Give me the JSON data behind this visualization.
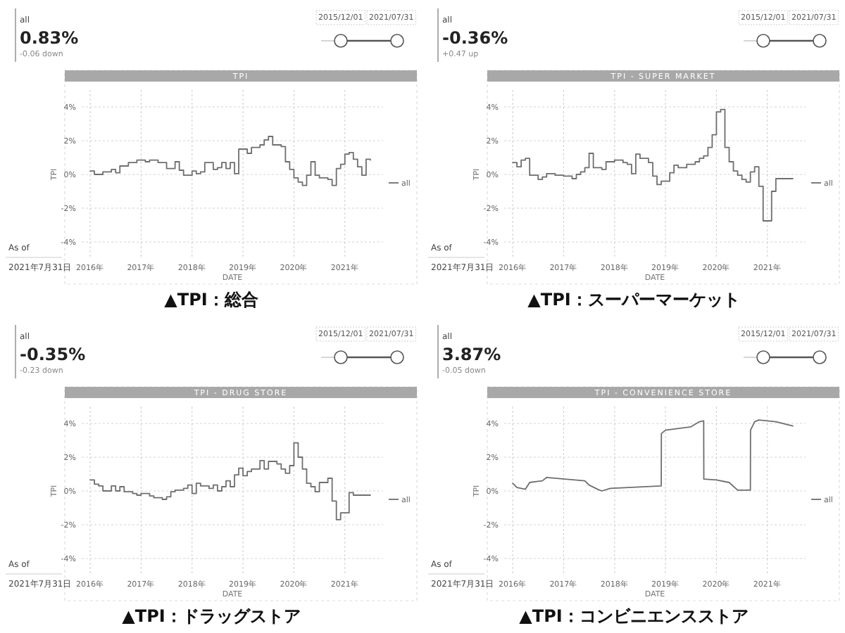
{
  "chart_data": [
    {
      "type": "step",
      "title": "▲TPI：総合",
      "subtitle": "TPI",
      "xlabel": "DATE",
      "ylabel": "TPI",
      "x": [
        "2016-01",
        "2016-02",
        "2016-04",
        "2016-06",
        "2016-07",
        "2016-08",
        "2016-10",
        "2016-12",
        "2017-02",
        "2017-03",
        "2017-05",
        "2017-07",
        "2017-09",
        "2017-10",
        "2017-11",
        "2018-01",
        "2018-02",
        "2018-03",
        "2018-04",
        "2018-06",
        "2018-07",
        "2018-08",
        "2018-09",
        "2018-10",
        "2018-11",
        "2018-12",
        "2019-02",
        "2019-03",
        "2019-05",
        "2019-06",
        "2019-07",
        "2019-08",
        "2019-10",
        "2019-11",
        "2019-12",
        "2020-01",
        "2020-02",
        "2020-03",
        "2020-04",
        "2020-05",
        "2020-06",
        "2020-07",
        "2020-09",
        "2020-10",
        "2020-11",
        "2020-12",
        "2021-01",
        "2021-02",
        "2021-03",
        "2021-04",
        "2021-05",
        "2021-06",
        "2021-07"
      ],
      "series": [
        {
          "name": "all",
          "color": "#6e6e6e",
          "values": [
            0.2,
            0,
            0.15,
            0.3,
            0.1,
            0.5,
            0.7,
            0.85,
            0.75,
            0.85,
            0.7,
            0.35,
            0.75,
            0.25,
            -0.05,
            0.2,
            0.05,
            0.15,
            0.7,
            0.3,
            0.4,
            0.7,
            0.35,
            0.7,
            0.05,
            1.5,
            1.25,
            1.6,
            1.75,
            2.05,
            2.25,
            1.75,
            1.65,
            0.75,
            0.3,
            -0.2,
            -0.45,
            -0.65,
            -0.05,
            0.75,
            -0.05,
            -0.2,
            -0.3,
            -0.65,
            0.35,
            0.6,
            1.2,
            1.3,
            0.9,
            0.45,
            -0.05,
            0.9,
            0.85
          ]
        }
      ],
      "xlim": [
        "2015-11",
        "2021-10"
      ],
      "ylim": [
        -5,
        5
      ],
      "xticks": [
        {
          "value": "2016",
          "label": "2016年"
        },
        {
          "value": "2017",
          "label": "2017年"
        },
        {
          "value": "2018",
          "label": "2018年"
        },
        {
          "value": "2019",
          "label": "2019年"
        },
        {
          "value": "2020",
          "label": "2020年"
        },
        {
          "value": "2021",
          "label": "2021年"
        }
      ],
      "yticks": [
        {
          "value": 4,
          "label": "4%"
        },
        {
          "value": 2,
          "label": "2%"
        },
        {
          "value": 0,
          "label": "0%"
        },
        {
          "value": -2,
          "label": "-2%"
        },
        {
          "value": -4,
          "label": "-4%"
        }
      ],
      "grid": true,
      "legend": "right",
      "annotations": [
        "all",
        "0.83%",
        "-0.06 down",
        "2015/12/01",
        "2021/07/31",
        "As of",
        "2021年7月31日"
      ]
    },
    {
      "type": "step",
      "title": "▲TPI：スーパーマーケット",
      "subtitle": "TPI - SUPER MARKET",
      "xlabel": "DATE",
      "ylabel": "TPI",
      "x": [
        "2016-01",
        "2016-02",
        "2016-03",
        "2016-04",
        "2016-05",
        "2016-07",
        "2016-08",
        "2016-09",
        "2016-11",
        "2017-01",
        "2017-03",
        "2017-04",
        "2017-05",
        "2017-06",
        "2017-07",
        "2017-08",
        "2017-10",
        "2017-11",
        "2018-01",
        "2018-03",
        "2018-04",
        "2018-05",
        "2018-06",
        "2018-07",
        "2018-09",
        "2018-10",
        "2018-11",
        "2018-12",
        "2019-02",
        "2019-03",
        "2019-04",
        "2019-06",
        "2019-08",
        "2019-09",
        "2019-10",
        "2019-11",
        "2019-12",
        "2020-01",
        "2020-02",
        "2020-03",
        "2020-04",
        "2020-05",
        "2020-06",
        "2020-07",
        "2020-08",
        "2020-09",
        "2020-10",
        "2020-11",
        "2020-12",
        "2021-02",
        "2021-03",
        "2021-07"
      ],
      "series": [
        {
          "name": "all",
          "color": "#6e6e6e",
          "values": [
            0.7,
            0.45,
            0.85,
            0.95,
            -0.05,
            -0.3,
            -0.15,
            0.05,
            -0.05,
            -0.1,
            -0.25,
            0,
            0.15,
            0.4,
            1.25,
            0.4,
            0.3,
            0.75,
            0.85,
            0.7,
            0.6,
            0.05,
            1.2,
            0.95,
            0.7,
            -0.1,
            -0.6,
            -0.4,
            0.1,
            0.55,
            0.4,
            0.6,
            0.75,
            0.95,
            1.1,
            1.6,
            2.35,
            3.7,
            3.85,
            1.6,
            0.75,
            0.2,
            -0.05,
            -0.3,
            -0.45,
            0.15,
            0.45,
            -0.7,
            -2.75,
            -1,
            -0.25,
            -0.25
          ]
        }
      ],
      "xlim": [
        "2015-11",
        "2021-10"
      ],
      "ylim": [
        -5,
        5
      ],
      "xticks": [
        {
          "value": "2016",
          "label": "2016年"
        },
        {
          "value": "2017",
          "label": "2017年"
        },
        {
          "value": "2018",
          "label": "2018年"
        },
        {
          "value": "2019",
          "label": "2019年"
        },
        {
          "value": "2020",
          "label": "2020年"
        },
        {
          "value": "2021",
          "label": "2021年"
        }
      ],
      "yticks": [
        {
          "value": 4,
          "label": "4%"
        },
        {
          "value": 2,
          "label": "2%"
        },
        {
          "value": 0,
          "label": "0%"
        },
        {
          "value": -2,
          "label": "-2%"
        },
        {
          "value": -4,
          "label": "-4%"
        }
      ],
      "grid": true,
      "legend": "right",
      "annotations": [
        "all",
        "-0.36%",
        "+0.47 up",
        "2015/12/01",
        "2021/07/31",
        "As of",
        "2021年7月31日"
      ]
    },
    {
      "type": "step",
      "title": "▲TPI：ドラッグストア",
      "subtitle": "TPI - DRUG STORE",
      "xlabel": "DATE",
      "ylabel": "TPI",
      "x": [
        "2016-01",
        "2016-02",
        "2016-03",
        "2016-04",
        "2016-06",
        "2016-07",
        "2016-08",
        "2016-09",
        "2016-11",
        "2016-12",
        "2017-01",
        "2017-03",
        "2017-04",
        "2017-06",
        "2017-07",
        "2017-08",
        "2017-09",
        "2017-11",
        "2017-12",
        "2018-01",
        "2018-02",
        "2018-03",
        "2018-05",
        "2018-06",
        "2018-07",
        "2018-08",
        "2018-09",
        "2018-10",
        "2018-11",
        "2018-12",
        "2019-01",
        "2019-02",
        "2019-03",
        "2019-05",
        "2019-06",
        "2019-07",
        "2019-09",
        "2019-10",
        "2019-11",
        "2019-12",
        "2020-01",
        "2020-02",
        "2020-03",
        "2020-04",
        "2020-05",
        "2020-06",
        "2020-07",
        "2020-09",
        "2020-10",
        "2020-11",
        "2020-12",
        "2021-02",
        "2021-03",
        "2021-07"
      ],
      "series": [
        {
          "name": "all",
          "color": "#6e6e6e",
          "values": [
            0.65,
            0.4,
            0.3,
            0,
            0.3,
            0,
            0.25,
            -0.05,
            -0.15,
            -0.25,
            -0.15,
            -0.3,
            -0.4,
            -0.5,
            -0.35,
            -0.05,
            0.05,
            0.15,
            0.35,
            -0.15,
            0.45,
            0.3,
            0.15,
            0.35,
            0,
            0.25,
            0.6,
            0.25,
            0.95,
            1.35,
            0.9,
            1.15,
            1.3,
            1.8,
            1.3,
            1.75,
            1.6,
            1.3,
            1.05,
            1.5,
            2.85,
            2,
            1.3,
            0.45,
            0.25,
            -0.05,
            0.5,
            0.75,
            -0.6,
            -1.7,
            -1.3,
            -0.1,
            -0.25,
            -0.25
          ]
        }
      ],
      "xlim": [
        "2015-11",
        "2021-10"
      ],
      "ylim": [
        -5,
        5
      ],
      "xticks": [
        {
          "value": "2016",
          "label": "2016年"
        },
        {
          "value": "2017",
          "label": "2017年"
        },
        {
          "value": "2018",
          "label": "2018年"
        },
        {
          "value": "2019",
          "label": "2019年"
        },
        {
          "value": "2020",
          "label": "2020年"
        },
        {
          "value": "2021",
          "label": "2021年"
        }
      ],
      "yticks": [
        {
          "value": 4,
          "label": "4%"
        },
        {
          "value": 2,
          "label": "2%"
        },
        {
          "value": 0,
          "label": "0%"
        },
        {
          "value": -2,
          "label": "-2%"
        },
        {
          "value": -4,
          "label": "-4%"
        }
      ],
      "grid": true,
      "legend": "right",
      "annotations": [
        "all",
        "-0.35%",
        "-0.23 down",
        "2015/12/01",
        "2021/07/31",
        "As of",
        "2021年7月31日"
      ]
    },
    {
      "type": "line",
      "title": "▲TPI：コンビニエンスストア",
      "subtitle": "TPI - CONVENIENCE STORE",
      "xlabel": "DATE",
      "ylabel": "TPI",
      "x": [
        "2016-01",
        "2016-02",
        "2016-04",
        "2016-05",
        "2016-08",
        "2016-09",
        "2017-06",
        "2017-07",
        "2017-09",
        "2017-10",
        "2017-12",
        "2018-12-01",
        "2018-12-02",
        "2019-01",
        "2019-07",
        "2019-09",
        "2019-10-01",
        "2019-10-02",
        "2020-01",
        "2020-04",
        "2020-06",
        "2020-09-01",
        "2020-09-02",
        "2020-10",
        "2020-11",
        "2021-03",
        "2021-07"
      ],
      "series": [
        {
          "name": "all",
          "color": "#6e6e6e",
          "values": [
            0.45,
            0.2,
            0.1,
            0.5,
            0.6,
            0.8,
            0.6,
            0.35,
            0.1,
            0,
            0.15,
            0.3,
            3.4,
            3.6,
            3.8,
            4.1,
            4.15,
            0.7,
            0.65,
            0.5,
            0.05,
            0.05,
            3.6,
            4.1,
            4.2,
            4.1,
            3.85
          ]
        }
      ],
      "xlim": [
        "2015-11",
        "2021-10"
      ],
      "ylim": [
        -5,
        5
      ],
      "xticks": [
        {
          "value": "2016",
          "label": "2016年"
        },
        {
          "value": "2017",
          "label": "2017年"
        },
        {
          "value": "2018",
          "label": "2018年"
        },
        {
          "value": "2019",
          "label": "2019年"
        },
        {
          "value": "2020",
          "label": "2020年"
        },
        {
          "value": "2021",
          "label": "2021年"
        }
      ],
      "yticks": [
        {
          "value": 4,
          "label": "4%"
        },
        {
          "value": 2,
          "label": "2%"
        },
        {
          "value": 0,
          "label": "0%"
        },
        {
          "value": -2,
          "label": "-2%"
        },
        {
          "value": -4,
          "label": "-4%"
        }
      ],
      "grid": true,
      "legend": "right",
      "annotations": [
        "all",
        "3.87%",
        "-0.05 down",
        "2015/12/01",
        "2021/07/31",
        "As of",
        "2021年7月31日"
      ]
    }
  ]
}
